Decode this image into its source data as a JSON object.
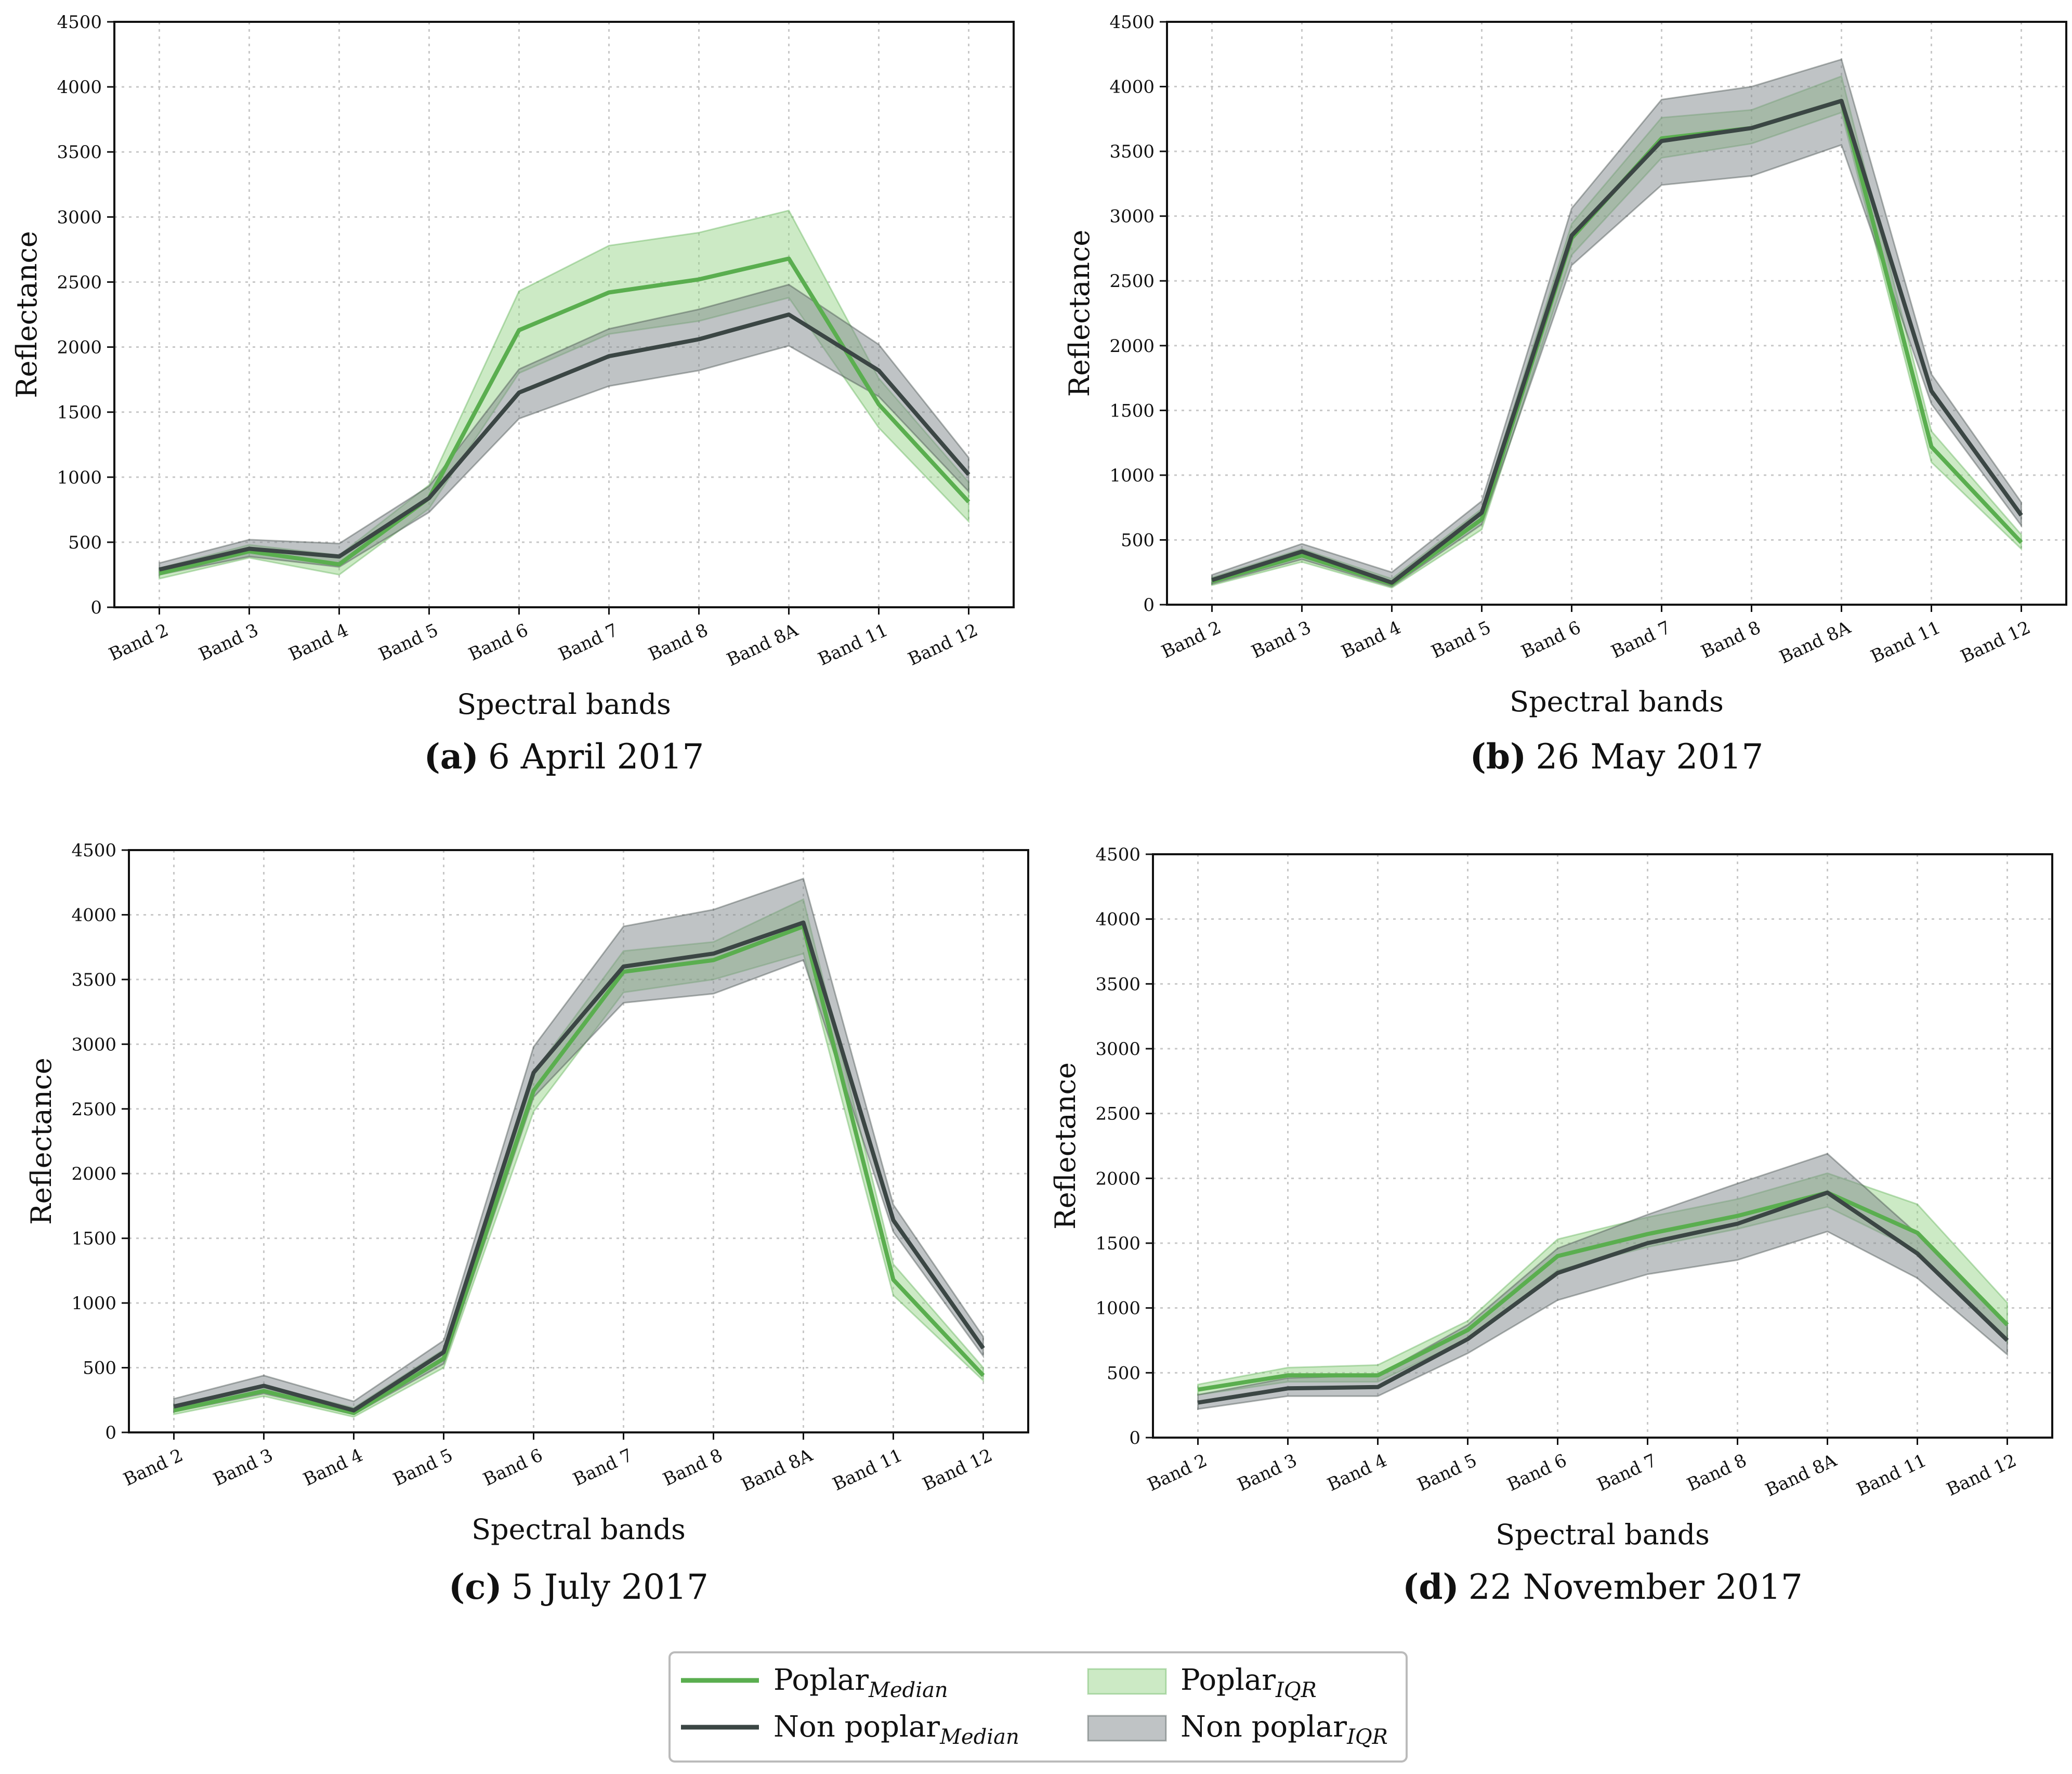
{
  "colors": {
    "poplar_line": "#5aae4f",
    "poplar_fill": "#8fd17f",
    "nonpoplar_line": "#3b4644",
    "nonpoplar_fill": "#7f888c",
    "grid": "#c8c8c8"
  },
  "legend": {
    "items": [
      {
        "key": "poplar_median",
        "label": "Poplar",
        "sub": "Median",
        "kind": "line",
        "series": "poplar"
      },
      {
        "key": "nonpoplar_median",
        "label": "Non poplar",
        "sub": "Median",
        "kind": "line",
        "series": "nonpoplar"
      },
      {
        "key": "poplar_iqr",
        "label": "Poplar",
        "sub": "IQR",
        "kind": "fill",
        "series": "poplar"
      },
      {
        "key": "nonpoplar_iqr",
        "label": "Non poplar",
        "sub": "IQR",
        "kind": "fill",
        "series": "nonpoplar"
      }
    ]
  },
  "chart_data": [
    {
      "type": "line",
      "panel_letter": "(a)",
      "panel_date": "6 April 2017",
      "xlabel": "Spectral bands",
      "ylabel": "Reflectance",
      "ylim": [
        0,
        4500
      ],
      "yticks": [
        0,
        500,
        1000,
        1500,
        2000,
        2500,
        3000,
        3500,
        4000,
        4500
      ],
      "categories": [
        "Band 2",
        "Band 3",
        "Band 4",
        "Band 5",
        "Band 6",
        "Band 7",
        "Band 8",
        "Band 8A",
        "Band 11",
        "Band 12"
      ],
      "series": [
        {
          "name": "Poplar",
          "median": [
            260,
            430,
            330,
            840,
            2130,
            2420,
            2520,
            2680,
            1560,
            810
          ],
          "q1": [
            220,
            380,
            250,
            760,
            1800,
            2100,
            2200,
            2380,
            1380,
            660
          ],
          "q3": [
            300,
            480,
            400,
            940,
            2430,
            2780,
            2880,
            3050,
            1760,
            960
          ]
        },
        {
          "name": "Non poplar",
          "median": [
            290,
            450,
            390,
            840,
            1650,
            1930,
            2060,
            2250,
            1820,
            1020
          ],
          "q1": [
            250,
            390,
            310,
            730,
            1450,
            1700,
            1820,
            2010,
            1620,
            890
          ],
          "q3": [
            340,
            520,
            490,
            930,
            1830,
            2140,
            2290,
            2480,
            2020,
            1150
          ]
        }
      ]
    },
    {
      "type": "line",
      "panel_letter": "(b)",
      "panel_date": "26 May 2017",
      "xlabel": "Spectral bands",
      "ylabel": "Reflectance",
      "ylim": [
        0,
        4500
      ],
      "yticks": [
        0,
        500,
        1000,
        1500,
        2000,
        2500,
        3000,
        3500,
        4000,
        4500
      ],
      "categories": [
        "Band 2",
        "Band 3",
        "Band 4",
        "Band 5",
        "Band 6",
        "Band 7",
        "Band 8",
        "Band 8A",
        "Band 11",
        "Band 12"
      ],
      "series": [
        {
          "name": "Poplar",
          "median": [
            180,
            380,
            160,
            660,
            2830,
            3600,
            3680,
            3890,
            1220,
            480
          ],
          "q1": [
            150,
            330,
            130,
            580,
            2700,
            3450,
            3560,
            3800,
            1100,
            430
          ],
          "q3": [
            210,
            430,
            200,
            740,
            2940,
            3760,
            3820,
            4080,
            1340,
            540
          ]
        },
        {
          "name": "Non poplar",
          "median": [
            190,
            410,
            170,
            710,
            2850,
            3580,
            3680,
            3890,
            1650,
            690
          ],
          "q1": [
            160,
            350,
            140,
            620,
            2620,
            3240,
            3310,
            3550,
            1550,
            610
          ],
          "q3": [
            230,
            470,
            250,
            800,
            3060,
            3900,
            4000,
            4210,
            1780,
            790
          ]
        }
      ]
    },
    {
      "type": "line",
      "panel_letter": "(c)",
      "panel_date": "5 July 2017",
      "xlabel": "Spectral bands",
      "ylabel": "Reflectance",
      "ylim": [
        0,
        4500
      ],
      "yticks": [
        0,
        500,
        1000,
        1500,
        2000,
        2500,
        3000,
        3500,
        4000,
        4500
      ],
      "categories": [
        "Band 2",
        "Band 3",
        "Band 4",
        "Band 5",
        "Band 6",
        "Band 7",
        "Band 8",
        "Band 8A",
        "Band 11",
        "Band 12"
      ],
      "series": [
        {
          "name": "Poplar",
          "median": [
            170,
            320,
            150,
            570,
            2640,
            3560,
            3650,
            3910,
            1180,
            440
          ],
          "q1": [
            140,
            280,
            120,
            500,
            2480,
            3400,
            3500,
            3700,
            1060,
            400
          ],
          "q3": [
            200,
            360,
            190,
            640,
            2780,
            3720,
            3790,
            4120,
            1300,
            500
          ]
        },
        {
          "name": "Non poplar",
          "median": [
            200,
            360,
            170,
            620,
            2780,
            3600,
            3700,
            3940,
            1640,
            650
          ],
          "q1": [
            160,
            300,
            140,
            530,
            2590,
            3320,
            3390,
            3650,
            1550,
            590
          ],
          "q3": [
            260,
            440,
            240,
            710,
            2980,
            3910,
            4040,
            4280,
            1760,
            740
          ]
        }
      ]
    },
    {
      "type": "line",
      "panel_letter": "(d)",
      "panel_date": "22 November 2017",
      "xlabel": "Spectral bands",
      "ylabel": "Reflectance",
      "ylim": [
        0,
        4500
      ],
      "yticks": [
        0,
        500,
        1000,
        1500,
        2000,
        2500,
        3000,
        3500,
        4000,
        4500
      ],
      "categories": [
        "Band 2",
        "Band 3",
        "Band 4",
        "Band 5",
        "Band 6",
        "Band 7",
        "Band 8",
        "Band 8A",
        "Band 11",
        "Band 12"
      ],
      "series": [
        {
          "name": "Poplar",
          "median": [
            370,
            480,
            480,
            830,
            1400,
            1570,
            1710,
            1890,
            1580,
            870
          ],
          "q1": [
            330,
            430,
            430,
            760,
            1290,
            1470,
            1610,
            1780,
            1440,
            740
          ],
          "q3": [
            410,
            540,
            560,
            900,
            1530,
            1700,
            1840,
            2040,
            1800,
            1040
          ]
        },
        {
          "name": "Non poplar",
          "median": [
            270,
            380,
            390,
            760,
            1270,
            1500,
            1650,
            1890,
            1420,
            750
          ],
          "q1": [
            220,
            320,
            320,
            650,
            1060,
            1260,
            1370,
            1590,
            1230,
            640
          ],
          "q3": [
            330,
            460,
            480,
            870,
            1460,
            1720,
            1960,
            2190,
            1570,
            880
          ]
        }
      ]
    }
  ]
}
